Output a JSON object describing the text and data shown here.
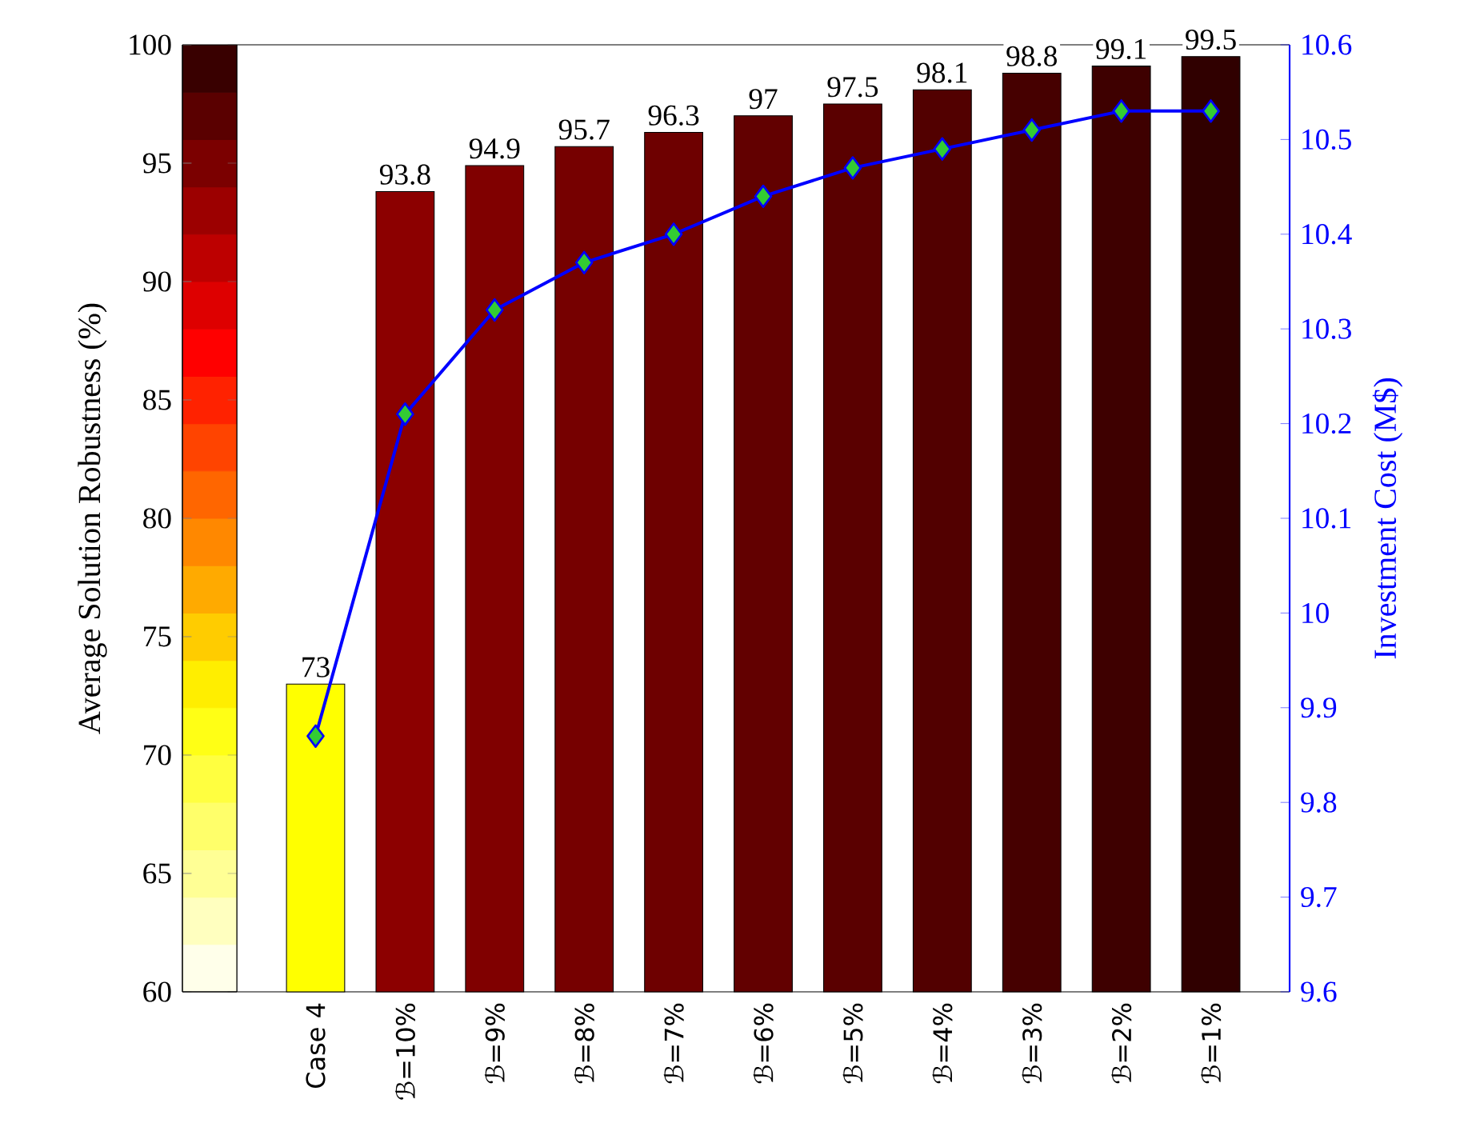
{
  "chart_data": {
    "type": "bar",
    "categories": [
      "Case 4",
      "ℬ=10%",
      "ℬ=9%",
      "ℬ=8%",
      "ℬ=7%",
      "ℬ=6%",
      "ℬ=5%",
      "ℬ=4%",
      "ℬ=3%",
      "ℬ=2%",
      "ℬ=1%"
    ],
    "ylabel": "Average Solution Robustness (%)",
    "y2label": "Investment Cost (M$)",
    "ylim": [
      60,
      100
    ],
    "clim": [
      60,
      100
    ],
    "cticks": [
      60,
      65,
      70,
      75,
      80,
      85,
      90,
      95,
      100
    ],
    "y2lim": [
      9.6,
      10.6
    ],
    "y2ticks": [
      9.6,
      9.7,
      9.8,
      9.9,
      10,
      10.1,
      10.2,
      10.3,
      10.4,
      10.5,
      10.6
    ],
    "series": [
      {
        "colors": [
          "#ffff00",
          "#8c0000",
          "#800000",
          "#760000",
          "#6e0000",
          "#620000",
          "#5a0000",
          "#520000",
          "#460000",
          "#3e0000",
          "#300000"
        ],
        "values": [
          73,
          93.8,
          94.9,
          95.7,
          96.3,
          97,
          97.5,
          98.1,
          98.8,
          99.1,
          99.5
        ],
        "value_labels": [
          "73",
          "93.8",
          "94.9",
          "95.7",
          "96.3",
          "97",
          "97.5",
          "98.1",
          "98.8",
          "99.1",
          "99.5"
        ]
      },
      {
        "type": "line",
        "axis": "y2",
        "color": "#0000ff",
        "marker": "diamond",
        "values": [
          9.87,
          10.21,
          10.32,
          10.37,
          10.4,
          10.44,
          10.47,
          10.49,
          10.51,
          10.53,
          10.53
        ]
      }
    ]
  }
}
